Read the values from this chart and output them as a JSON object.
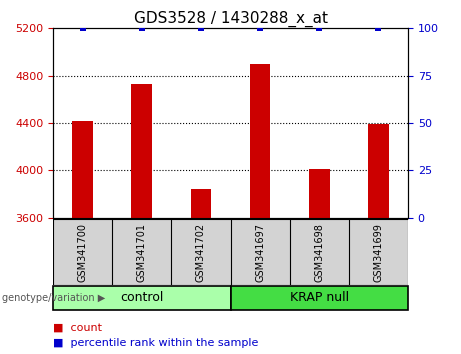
{
  "title": "GDS3528 / 1430288_x_at",
  "categories": [
    "GSM341700",
    "GSM341701",
    "GSM341702",
    "GSM341697",
    "GSM341698",
    "GSM341699"
  ],
  "bar_values": [
    4420,
    4730,
    3840,
    4900,
    4010,
    4390
  ],
  "bar_color": "#cc0000",
  "percentile_values": [
    100,
    100,
    100,
    100,
    100,
    100
  ],
  "percentile_color": "#0000cc",
  "ylim_left": [
    3600,
    5200
  ],
  "ylim_right": [
    0,
    100
  ],
  "yticks_left": [
    3600,
    4000,
    4400,
    4800,
    5200
  ],
  "yticks_right": [
    0,
    25,
    50,
    75,
    100
  ],
  "groups": [
    {
      "label": "control",
      "indices": [
        0,
        1,
        2
      ],
      "color": "#aaffaa"
    },
    {
      "label": "KRAP null",
      "indices": [
        3,
        4,
        5
      ],
      "color": "#44dd44"
    }
  ],
  "group_label_prefix": "genotype/variation",
  "legend_count_label": "count",
  "legend_percentile_label": "percentile rank within the sample",
  "bar_width": 0.35,
  "tick_color_left": "#cc0000",
  "tick_color_right": "#0000cc",
  "title_fontsize": 11,
  "axis_fontsize": 8,
  "cat_label_fontsize": 7,
  "group_label_fontsize": 9,
  "legend_fontsize": 8
}
